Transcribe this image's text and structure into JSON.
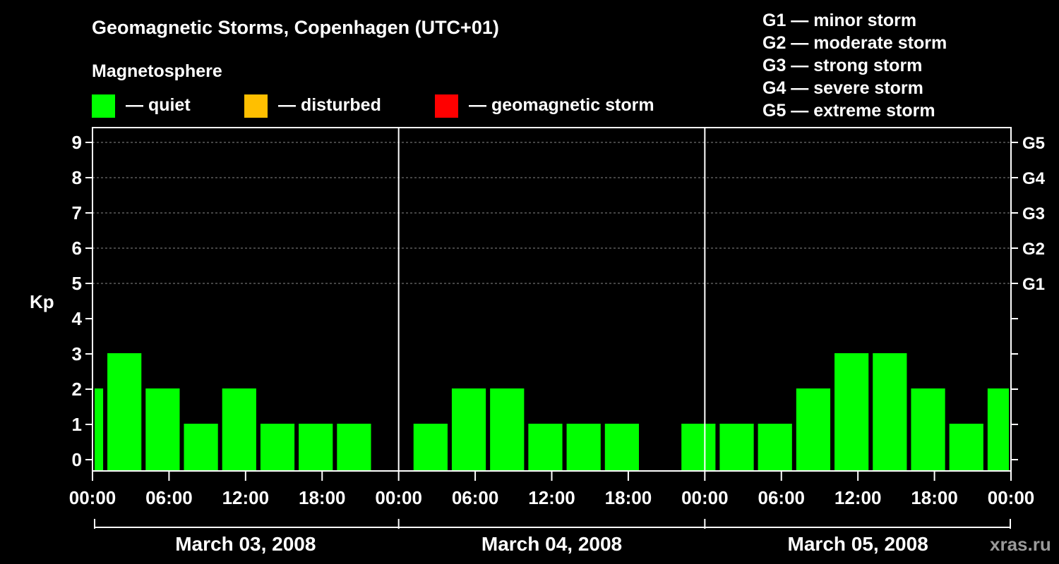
{
  "chart_data": {
    "type": "bar",
    "title": "Geomagnetic Storms, Copenhagen (UTC+01)",
    "ylabel": "Kp",
    "ylim": [
      0,
      9
    ],
    "yticks": [
      "0",
      "1",
      "2",
      "3",
      "4",
      "5",
      "6",
      "7",
      "8",
      "9"
    ],
    "right_levels": [
      {
        "label": "G1",
        "kp": 5
      },
      {
        "label": "G2",
        "kp": 6
      },
      {
        "label": "G3",
        "kp": 7
      },
      {
        "label": "G4",
        "kp": 8
      },
      {
        "label": "G5",
        "kp": 9
      }
    ],
    "storm_scale": [
      "G1 — minor storm",
      "G2 — moderate storm",
      "G3 — strong storm",
      "G4 — severe storm",
      "G5 — extreme storm"
    ],
    "legend": {
      "heading": "Magnetosphere",
      "items": [
        {
          "label": "— quiet",
          "color": "#00ff00"
        },
        {
          "label": "— disturbed",
          "color": "#ffbf00"
        },
        {
          "label": "— geomagnetic storm",
          "color": "#ff0000"
        }
      ]
    },
    "x_hours_range": [
      0,
      72
    ],
    "xtick_labels": [
      "00:00",
      "06:00",
      "12:00",
      "18:00",
      "00:00",
      "06:00",
      "12:00",
      "18:00",
      "00:00",
      "06:00",
      "12:00",
      "18:00",
      "00:00"
    ],
    "days": [
      "March 03, 2008",
      "March 04, 2008",
      "March 05, 2008"
    ],
    "bars": [
      {
        "start": 0,
        "end": 1,
        "kp": 2
      },
      {
        "start": 1,
        "end": 4,
        "kp": 3
      },
      {
        "start": 4,
        "end": 7,
        "kp": 2
      },
      {
        "start": 7,
        "end": 10,
        "kp": 1
      },
      {
        "start": 10,
        "end": 13,
        "kp": 2
      },
      {
        "start": 13,
        "end": 16,
        "kp": 1
      },
      {
        "start": 16,
        "end": 19,
        "kp": 1
      },
      {
        "start": 19,
        "end": 22,
        "kp": 1
      },
      {
        "start": 25,
        "end": 28,
        "kp": 1
      },
      {
        "start": 28,
        "end": 31,
        "kp": 2
      },
      {
        "start": 31,
        "end": 34,
        "kp": 2
      },
      {
        "start": 34,
        "end": 37,
        "kp": 1
      },
      {
        "start": 37,
        "end": 40,
        "kp": 1
      },
      {
        "start": 40,
        "end": 43,
        "kp": 1
      },
      {
        "start": 46,
        "end": 49,
        "kp": 1
      },
      {
        "start": 49,
        "end": 52,
        "kp": 1
      },
      {
        "start": 52,
        "end": 55,
        "kp": 1
      },
      {
        "start": 55,
        "end": 58,
        "kp": 2
      },
      {
        "start": 58,
        "end": 61,
        "kp": 3
      },
      {
        "start": 61,
        "end": 64,
        "kp": 3
      },
      {
        "start": 64,
        "end": 67,
        "kp": 2
      },
      {
        "start": 67,
        "end": 70,
        "kp": 1
      },
      {
        "start": 70,
        "end": 72,
        "kp": 2
      }
    ],
    "bar_color": "#00ff00",
    "watermark": "xras.ru"
  }
}
